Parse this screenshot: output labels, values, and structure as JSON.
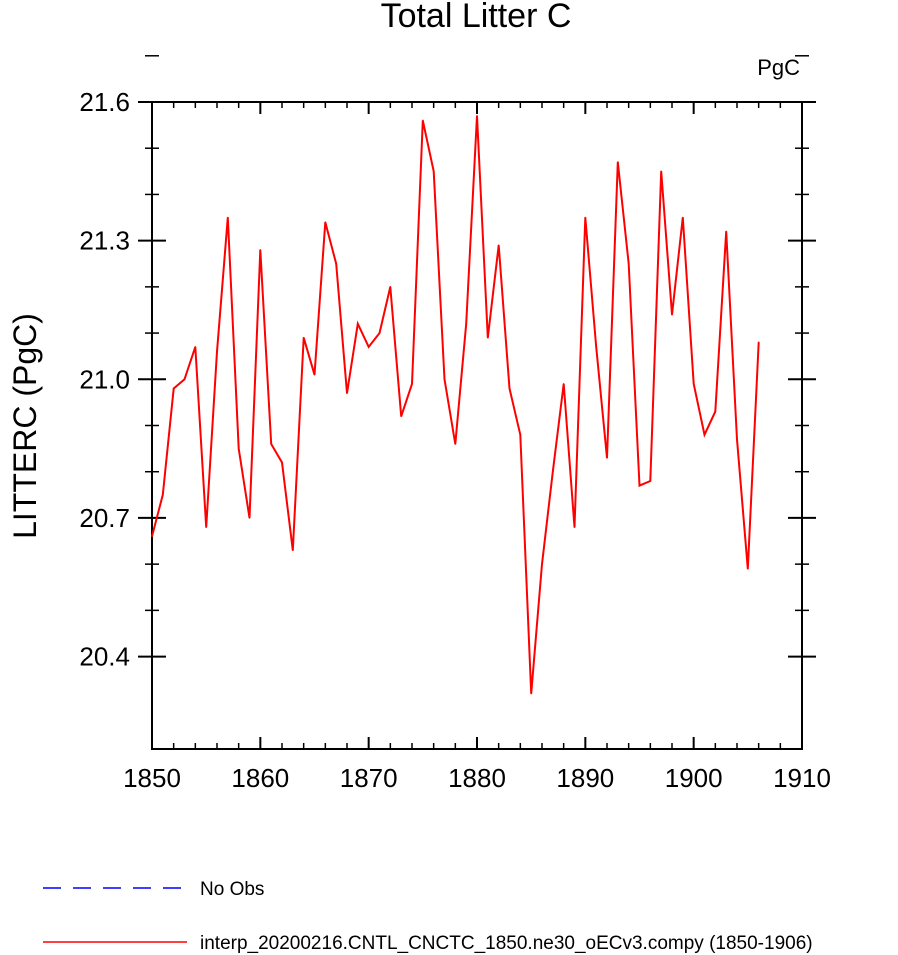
{
  "chart_data": {
    "type": "line",
    "title": "Total Litter C",
    "units_label": "PgC",
    "xlabel": "",
    "ylabel": "LITTERC  (PgC)",
    "xlim": [
      1850,
      1910
    ],
    "ylim": [
      20.2,
      21.6
    ],
    "x_ticks": [
      1850,
      1860,
      1870,
      1880,
      1890,
      1900,
      1910
    ],
    "x_tick_labels": [
      "1850",
      "1860",
      "1870",
      "1880",
      "1890",
      "1900",
      "1910"
    ],
    "y_ticks": [
      20.4,
      20.7,
      21.0,
      21.3,
      21.6
    ],
    "y_tick_labels": [
      "20.4",
      "20.7",
      "21.0",
      "21.3",
      "21.6"
    ],
    "grid": false,
    "legend_position": "bottom",
    "legend": [
      {
        "label": "No Obs",
        "color": "#0000ff",
        "style": "dashed"
      },
      {
        "label": "interp_20200216.CNTL_CNCTC_1850.ne30_oECv3.compy (1850-1906)",
        "color": "#ff0000",
        "style": "solid"
      }
    ],
    "series": [
      {
        "name": "interp_20200216.CNTL_CNCTC_1850.ne30_oECv3.compy (1850-1906)",
        "color": "#ff0000",
        "x": [
          1850,
          1851,
          1852,
          1853,
          1854,
          1855,
          1856,
          1857,
          1858,
          1859,
          1860,
          1861,
          1862,
          1863,
          1864,
          1865,
          1866,
          1867,
          1868,
          1869,
          1870,
          1871,
          1872,
          1873,
          1874,
          1875,
          1876,
          1877,
          1878,
          1879,
          1880,
          1881,
          1882,
          1883,
          1884,
          1885,
          1886,
          1887,
          1888,
          1889,
          1890,
          1891,
          1892,
          1893,
          1894,
          1895,
          1896,
          1897,
          1898,
          1899,
          1900,
          1901,
          1902,
          1903,
          1904,
          1905,
          1906
        ],
        "values": [
          20.66,
          20.75,
          20.98,
          21.0,
          21.07,
          20.68,
          21.06,
          21.35,
          20.85,
          20.7,
          21.28,
          20.86,
          20.82,
          20.63,
          21.09,
          21.01,
          21.34,
          21.25,
          20.97,
          21.12,
          21.07,
          21.1,
          21.2,
          20.92,
          20.99,
          21.56,
          21.45,
          21.0,
          20.86,
          21.12,
          21.57,
          21.09,
          21.29,
          20.98,
          20.88,
          20.32,
          20.6,
          20.8,
          20.99,
          20.68,
          21.35,
          21.07,
          20.83,
          21.47,
          21.25,
          20.77,
          20.78,
          21.45,
          21.14,
          21.35,
          20.99,
          20.88,
          20.93,
          21.32,
          20.87,
          20.59,
          21.08
        ]
      }
    ]
  }
}
